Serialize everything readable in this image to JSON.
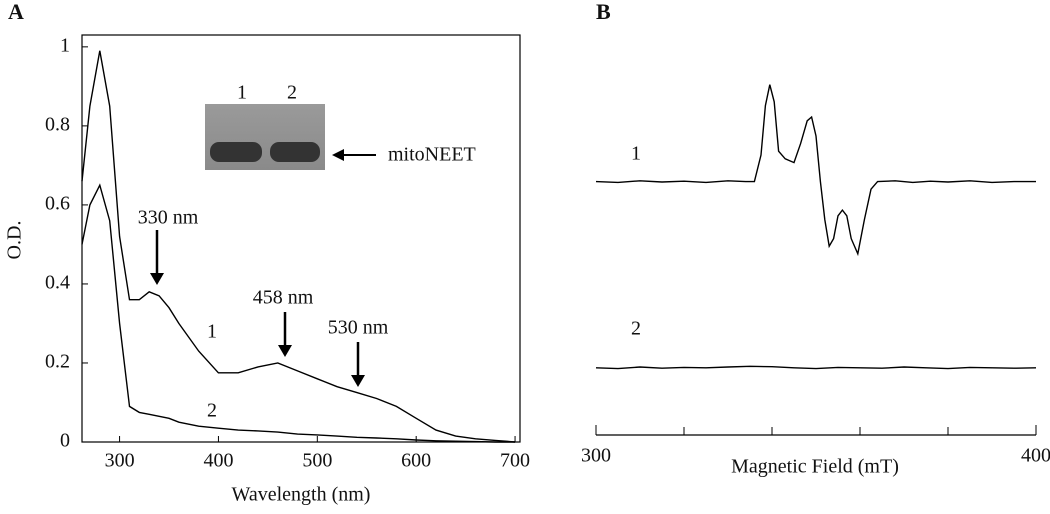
{
  "panels": [
    "A",
    "B"
  ],
  "chart_data": [
    {
      "type": "line",
      "xlabel": "Wavelength (nm)",
      "ylabel": "O.D.",
      "xlim": [
        262,
        705
      ],
      "ylim": [
        0,
        1.03
      ],
      "xticks": [
        300,
        400,
        500,
        600,
        700
      ],
      "yticks": [
        0,
        0.2,
        0.4,
        0.6,
        0.8,
        1
      ],
      "x": [
        262,
        270,
        280,
        290,
        300,
        310,
        320,
        330,
        340,
        350,
        360,
        380,
        400,
        420,
        440,
        460,
        480,
        500,
        520,
        540,
        560,
        580,
        600,
        620,
        640,
        660,
        680,
        700
      ],
      "series": [
        {
          "name": "1",
          "color": "#000000",
          "values": [
            0.66,
            0.85,
            0.99,
            0.85,
            0.52,
            0.36,
            0.36,
            0.38,
            0.37,
            0.34,
            0.3,
            0.23,
            0.175,
            0.175,
            0.19,
            0.2,
            0.18,
            0.16,
            0.14,
            0.125,
            0.11,
            0.09,
            0.06,
            0.03,
            0.015,
            0.008,
            0.004,
            0
          ]
        },
        {
          "name": "2",
          "color": "#000000",
          "values": [
            0.5,
            0.6,
            0.65,
            0.56,
            0.3,
            0.09,
            0.075,
            0.07,
            0.065,
            0.06,
            0.05,
            0.04,
            0.035,
            0.03,
            0.028,
            0.025,
            0.02,
            0.018,
            0.015,
            0.012,
            0.01,
            0.008,
            0.005,
            0.003,
            0.002,
            0.001,
            0,
            0
          ]
        }
      ],
      "annotations": [
        "330 nm",
        "458 nm",
        "530 nm"
      ],
      "inset": {
        "lanes": [
          "1",
          "2"
        ],
        "band_label": "mitoNEET"
      }
    },
    {
      "type": "line",
      "xlabel": "Magnetic Field (mT)",
      "xlim": [
        300,
        400
      ],
      "ylim": [
        0,
        10
      ],
      "xticks": [
        300,
        400
      ],
      "xminorticks": [
        320,
        340,
        360,
        380
      ],
      "series": [
        {
          "name": "1",
          "color": "#000000",
          "x": [
            300,
            305,
            310,
            315,
            320,
            325,
            330,
            334,
            336,
            337.5,
            338.5,
            339.5,
            340.5,
            341.5,
            343,
            345,
            346.5,
            348,
            349,
            350,
            351,
            352,
            353,
            354,
            355,
            356,
            357,
            358,
            359.5,
            361,
            362.5,
            364,
            368,
            372,
            376,
            380,
            385,
            390,
            395,
            400
          ],
          "values": [
            6.8,
            6.78,
            6.82,
            6.79,
            6.81,
            6.78,
            6.82,
            6.8,
            6.8,
            7.5,
            8.8,
            9.35,
            8.9,
            7.6,
            7.4,
            7.3,
            7.8,
            8.4,
            8.5,
            8.0,
            6.8,
            5.8,
            5.1,
            5.3,
            5.9,
            6.05,
            5.9,
            5.3,
            4.9,
            5.8,
            6.6,
            6.8,
            6.82,
            6.78,
            6.81,
            6.79,
            6.82,
            6.78,
            6.8,
            6.8
          ]
        },
        {
          "name": "2",
          "color": "#000000",
          "x": [
            300,
            305,
            310,
            315,
            320,
            325,
            330,
            335,
            340,
            345,
            350,
            355,
            360,
            365,
            370,
            375,
            380,
            385,
            390,
            395,
            400
          ],
          "values": [
            1.9,
            1.88,
            1.92,
            1.89,
            1.91,
            1.9,
            1.92,
            1.94,
            1.93,
            1.9,
            1.88,
            1.91,
            1.9,
            1.89,
            1.92,
            1.9,
            1.88,
            1.91,
            1.9,
            1.89,
            1.9
          ]
        }
      ]
    }
  ]
}
